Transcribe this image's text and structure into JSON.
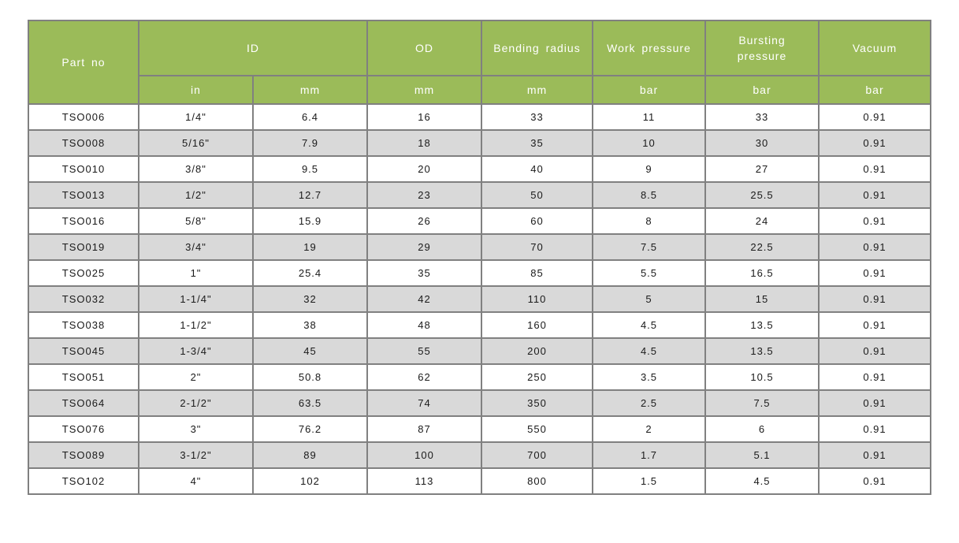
{
  "colors": {
    "header_bg": "#9bbb59",
    "header_text": "#ffffff",
    "row_bg": "#ffffff",
    "row_alt_bg": "#d9d9d9",
    "border": "#808080",
    "cell_text": "#1a1a1a"
  },
  "chart_data": {
    "type": "table",
    "title": "",
    "header": {
      "part_no_label": "Part no",
      "groups": [
        {
          "label": "ID",
          "units": [
            "in",
            "mm"
          ]
        },
        {
          "label": "OD",
          "units": [
            "mm"
          ]
        },
        {
          "label": "Bending radius",
          "units": [
            "mm"
          ]
        },
        {
          "label": "Work pressure",
          "units": [
            "bar"
          ]
        },
        {
          "label": "Bursting pressure",
          "units": [
            "bar"
          ]
        },
        {
          "label": "Vacuum",
          "units": [
            "bar"
          ]
        }
      ]
    },
    "columns": [
      "Part no",
      "ID in",
      "ID mm",
      "OD mm",
      "Bending radius mm",
      "Work pressure bar",
      "Bursting pressure bar",
      "Vacuum bar"
    ],
    "rows": [
      [
        "TSO006",
        "1/4\"",
        "6.4",
        "16",
        "33",
        "11",
        "33",
        "0.91"
      ],
      [
        "TSO008",
        "5/16\"",
        "7.9",
        "18",
        "35",
        "10",
        "30",
        "0.91"
      ],
      [
        "TSO010",
        "3/8\"",
        "9.5",
        "20",
        "40",
        "9",
        "27",
        "0.91"
      ],
      [
        "TSO013",
        "1/2\"",
        "12.7",
        "23",
        "50",
        "8.5",
        "25.5",
        "0.91"
      ],
      [
        "TSO016",
        "5/8\"",
        "15.9",
        "26",
        "60",
        "8",
        "24",
        "0.91"
      ],
      [
        "TSO019",
        "3/4\"",
        "19",
        "29",
        "70",
        "7.5",
        "22.5",
        "0.91"
      ],
      [
        "TSO025",
        "1\"",
        "25.4",
        "35",
        "85",
        "5.5",
        "16.5",
        "0.91"
      ],
      [
        "TSO032",
        "1-1/4\"",
        "32",
        "42",
        "110",
        "5",
        "15",
        "0.91"
      ],
      [
        "TSO038",
        "1-1/2\"",
        "38",
        "48",
        "160",
        "4.5",
        "13.5",
        "0.91"
      ],
      [
        "TSO045",
        "1-3/4\"",
        "45",
        "55",
        "200",
        "4.5",
        "13.5",
        "0.91"
      ],
      [
        "TSO051",
        "2\"",
        "50.8",
        "62",
        "250",
        "3.5",
        "10.5",
        "0.91"
      ],
      [
        "TSO064",
        "2-1/2\"",
        "63.5",
        "74",
        "350",
        "2.5",
        "7.5",
        "0.91"
      ],
      [
        "TSO076",
        "3\"",
        "76.2",
        "87",
        "550",
        "2",
        "6",
        "0.91"
      ],
      [
        "TSO089",
        "3-1/2\"",
        "89",
        "100",
        "700",
        "1.7",
        "5.1",
        "0.91"
      ],
      [
        "TSO102",
        "4\"",
        "102",
        "113",
        "800",
        "1.5",
        "4.5",
        "0.91"
      ]
    ]
  }
}
